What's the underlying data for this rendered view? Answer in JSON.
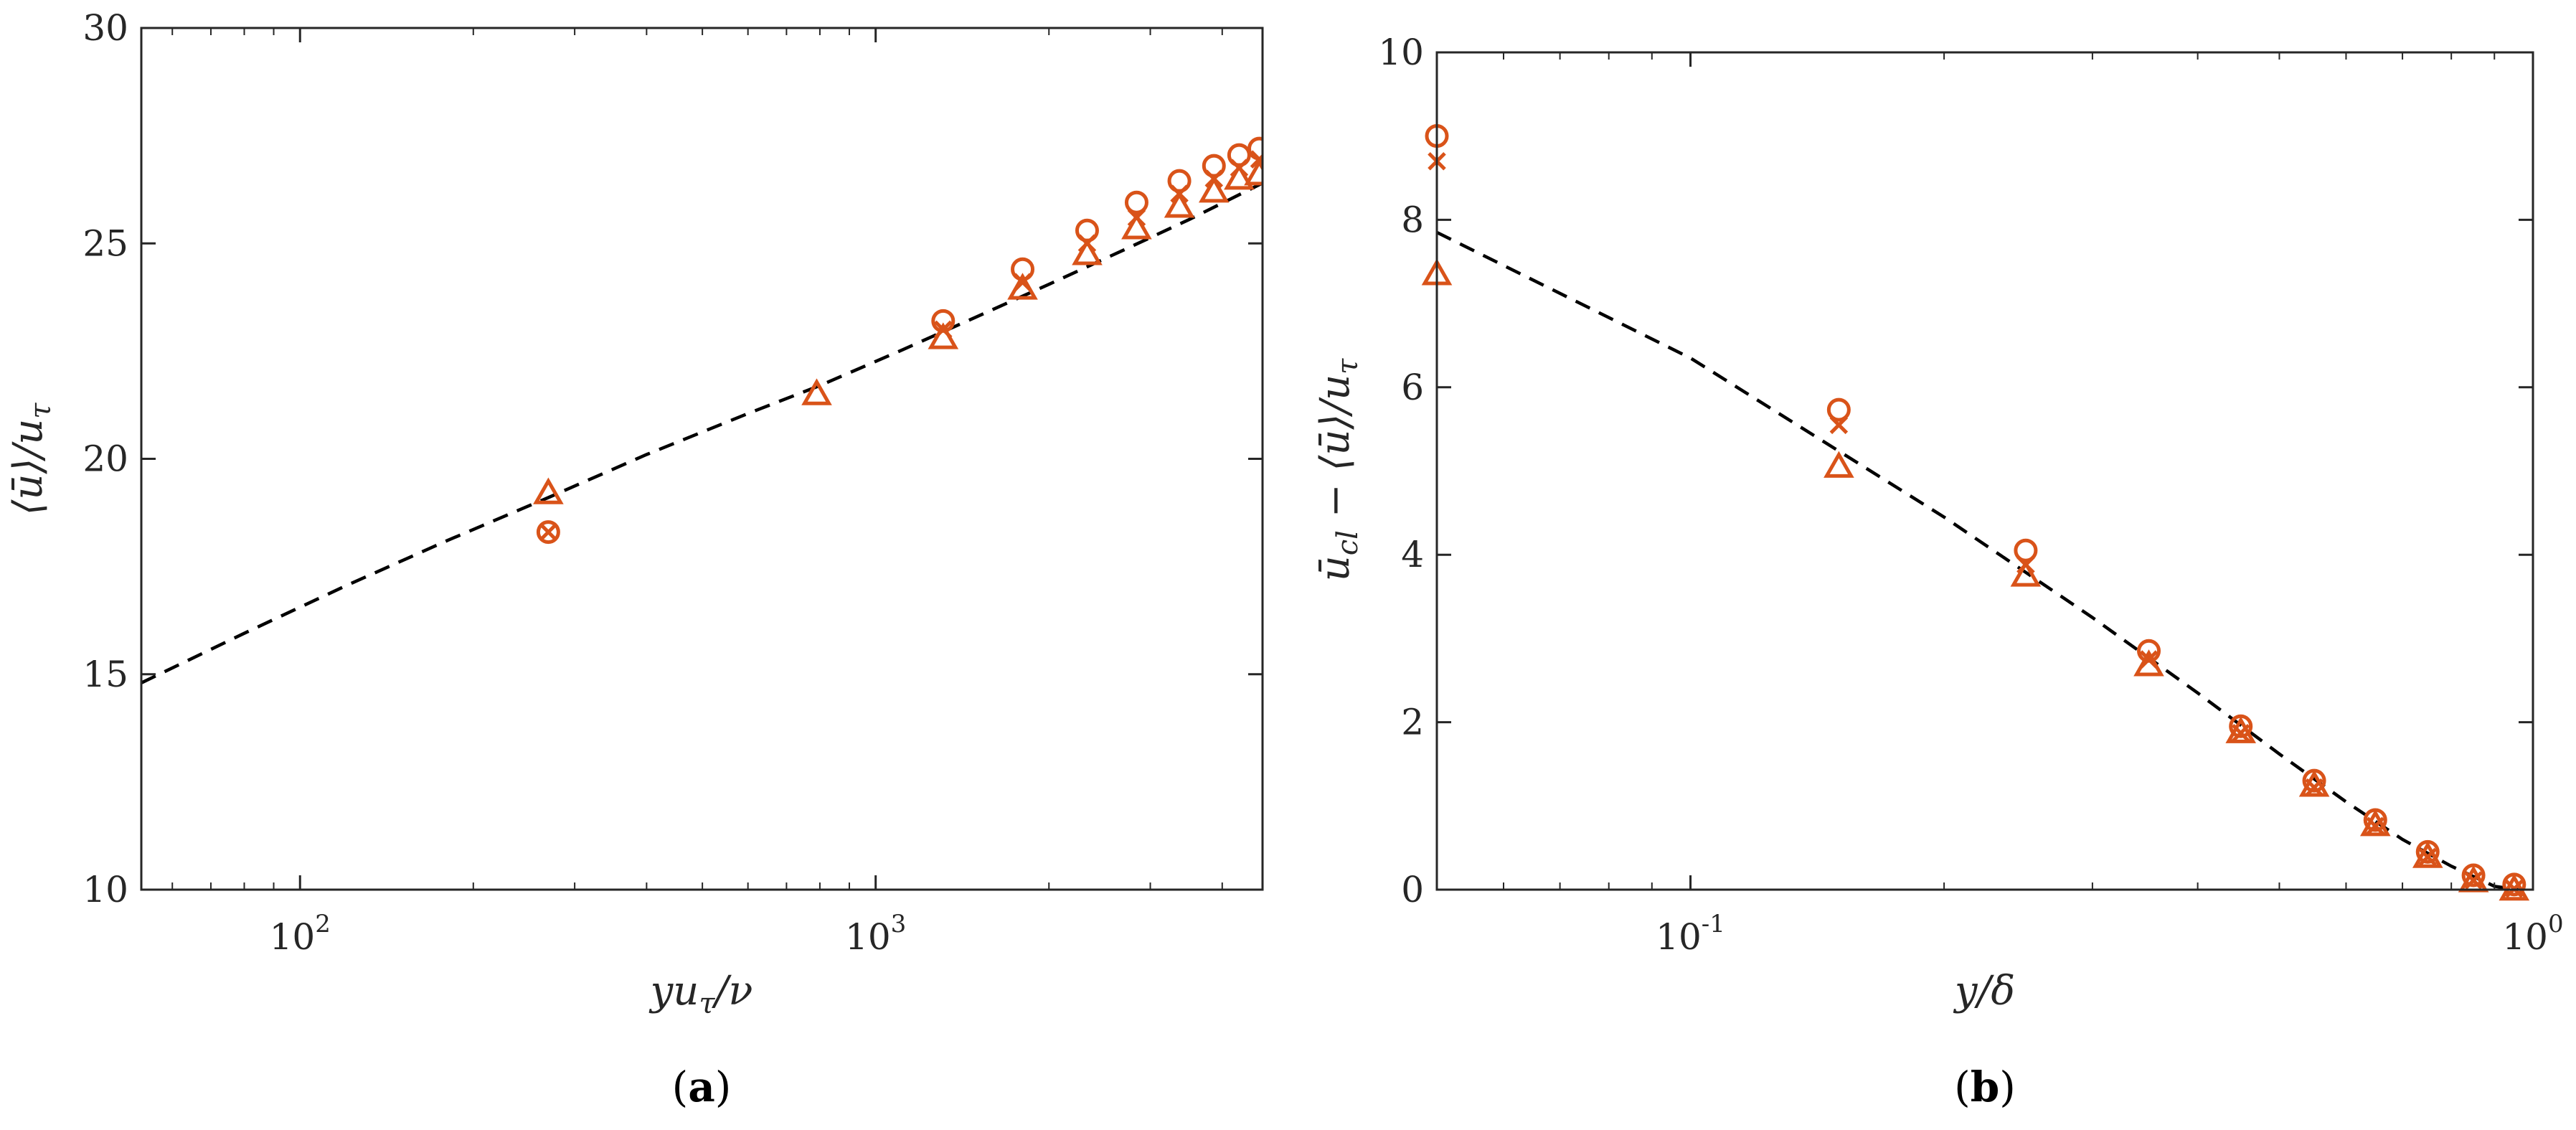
{
  "colors": {
    "marker": "#D95319",
    "fit": "#000000",
    "axis": "#262626",
    "background": "#FFFFFF"
  },
  "chart_data": [
    {
      "type": "scatter",
      "caption_open": "(",
      "caption_letter": "a",
      "caption_close": ")",
      "xlabel": "yu_τ/ν",
      "ylabel": "⟨ū⟩/u_τ",
      "xscale": "log",
      "xlim": [
        53,
        4700
      ],
      "ylim": [
        10,
        30
      ],
      "xticks": [
        {
          "base": "10",
          "exp": "2",
          "value": 100
        },
        {
          "base": "10",
          "exp": "3",
          "value": 1000
        }
      ],
      "yticks": [
        10,
        15,
        20,
        25,
        30
      ],
      "grid": false,
      "series": [
        {
          "name": "circle",
          "marker": "o",
          "x": [
            270,
            1310,
            1800,
            2330,
            2840,
            3370,
            3870,
            4280,
            4640
          ],
          "y": [
            18.2,
            23.1,
            24.3,
            25.2,
            25.85,
            26.35,
            26.7,
            26.95,
            27.1
          ]
        },
        {
          "name": "cross",
          "marker": "x",
          "x": [
            270,
            1310,
            1800,
            2330,
            2840,
            3370,
            3870,
            4280,
            4640
          ],
          "y": [
            18.3,
            23.0,
            24.1,
            25.0,
            25.6,
            26.15,
            26.5,
            26.75,
            26.95
          ]
        },
        {
          "name": "triangle",
          "marker": "^",
          "x": [
            270,
            790,
            1310,
            1800,
            2330,
            2840,
            3370,
            3870,
            4280,
            4640
          ],
          "y": [
            19.2,
            21.5,
            22.8,
            23.95,
            24.75,
            25.35,
            25.85,
            26.2,
            26.5,
            26.6
          ]
        },
        {
          "name": "fit",
          "style": "dashed",
          "x": [
            53,
            80,
            120,
            180,
            270,
            400,
            600,
            800,
            1100,
            1500,
            2000,
            2700,
            3500,
            4700
          ],
          "y": [
            14.8,
            15.95,
            17.05,
            18.1,
            19.1,
            20.1,
            21.05,
            21.7,
            22.5,
            23.3,
            24.05,
            24.85,
            25.55,
            26.4
          ]
        }
      ]
    },
    {
      "type": "scatter",
      "caption_open": "(",
      "caption_letter": "b",
      "caption_close": ")",
      "xlabel": "y/δ",
      "ylabel": "ū_cl − ⟨ū⟩/u_τ",
      "xscale": "log",
      "xlim": [
        0.05,
        1.0
      ],
      "ylim": [
        0,
        10
      ],
      "xticks": [
        {
          "base": "10",
          "exp": "-1",
          "value": 0.1
        },
        {
          "base": "10",
          "exp": "0",
          "value": 1
        }
      ],
      "yticks": [
        0,
        2,
        4,
        6,
        8,
        10
      ],
      "grid": false,
      "series": [
        {
          "name": "circle",
          "marker": "o",
          "x": [
            0.05,
            0.15,
            0.25,
            0.35,
            0.45,
            0.55,
            0.65,
            0.75,
            0.85,
            0.95
          ],
          "y": [
            8.95,
            5.68,
            4.0,
            2.8,
            1.9,
            1.25,
            0.78,
            0.4,
            0.12,
            0.01
          ]
        },
        {
          "name": "cross",
          "marker": "x",
          "x": [
            0.05,
            0.15,
            0.25,
            0.35,
            0.45,
            0.55,
            0.65,
            0.75,
            0.85,
            0.95
          ],
          "y": [
            8.7,
            5.55,
            3.88,
            2.75,
            1.87,
            1.22,
            0.76,
            0.39,
            0.11,
            0.01
          ]
        },
        {
          "name": "triangle",
          "marker": "^",
          "x": [
            0.05,
            0.15,
            0.25,
            0.35,
            0.45,
            0.55,
            0.65,
            0.75,
            0.85,
            0.95
          ],
          "y": [
            7.35,
            5.05,
            3.75,
            2.68,
            1.88,
            1.24,
            0.77,
            0.39,
            0.1,
            0.0
          ]
        },
        {
          "name": "fit",
          "style": "dashed",
          "x": [
            0.05,
            0.1,
            0.2,
            0.3,
            0.4,
            0.5,
            0.6,
            0.7,
            0.8,
            0.9,
            0.96
          ],
          "y": [
            7.85,
            6.35,
            4.45,
            3.25,
            2.35,
            1.62,
            1.05,
            0.6,
            0.28,
            0.04,
            0.0
          ]
        }
      ]
    }
  ]
}
